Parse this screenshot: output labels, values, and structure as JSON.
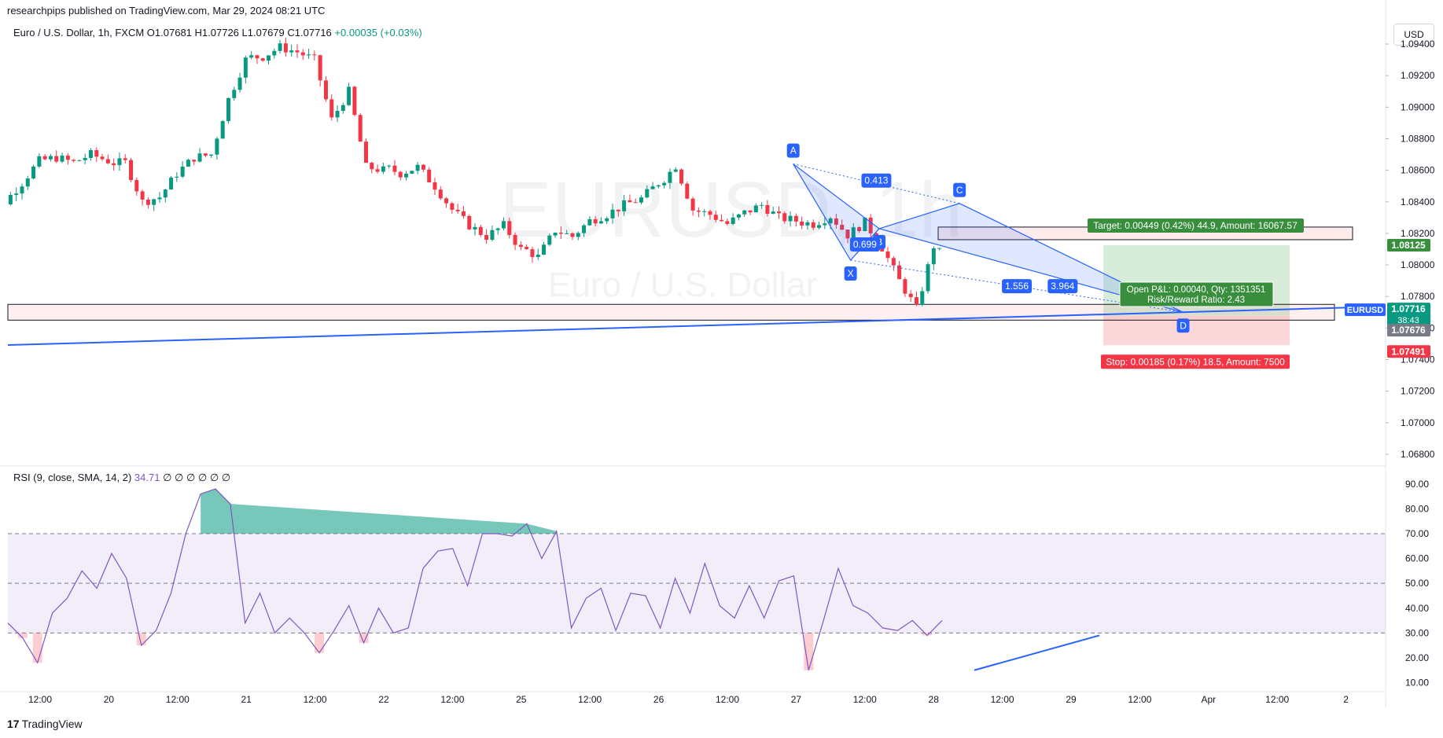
{
  "header": {
    "publisher": "researchpips published on TradingView.com, Mar 29, 2024 08:21 UTC"
  },
  "symbol_line": {
    "name": "Euro / U.S. Dollar, 1h, FXCM",
    "o": "O1.07681",
    "h": "H1.07726",
    "l": "L1.07679",
    "c": "C1.07716",
    "change": "+0.00035 (+0.03%)"
  },
  "watermark": {
    "ticker": "EURUSD, 1h",
    "name": "Euro / U.S. Dollar"
  },
  "currency_button": "USD",
  "rsi_label": {
    "name": "RSI (9, close, SMA, 14, 2)",
    "value": "34.71",
    "extras": "∅ ∅ ∅ ∅ ∅ ∅"
  },
  "brand": {
    "logo": "17",
    "name": "TradingView"
  },
  "colors": {
    "up": "#089981",
    "down": "#f23645",
    "pattern": "#2962ff",
    "rsi": "#7e57c2",
    "target": "#388e3c",
    "stop": "#f23645"
  },
  "price_tags": {
    "target": "1.08125",
    "symbol": "EURUSD",
    "last": "1.07716",
    "countdown": "38:43",
    "entry": "1.07676",
    "stop": "1.07491"
  },
  "position": {
    "target_label": "Target: 0.00449 (0.42%) 44.9, Amount: 16067.57",
    "pnl_label": "Open P&L: 0.00040, Qty: 1351351",
    "rr_label": "Risk/Reward Ratio: 2.43",
    "stop_label": "Stop: 0.00185 (0.17%) 18.5, Amount: 7500"
  },
  "pattern": {
    "points": [
      {
        "label": "X",
        "x": "2024-03-24 21:00",
        "y": 1.0803
      },
      {
        "label": "A",
        "x": "2024-03-26 11:00",
        "y": 1.0864
      },
      {
        "label": "B",
        "x": "2024-03-27 02:00",
        "y": 1.0823
      },
      {
        "label": "C",
        "x": "2024-03-27 16:00",
        "y": 1.0839
      },
      {
        "label": "D",
        "x": "2024-03-29 07:00",
        "y": 1.077
      }
    ],
    "ratios": [
      "0.413",
      "0.699",
      "1.556",
      "3.964"
    ]
  },
  "chart_data": {
    "type": "candlestick",
    "price_axis": {
      "ticks": [
        "1.09400",
        "1.09200",
        "1.09000",
        "1.08800",
        "1.08600",
        "1.08400",
        "1.08200",
        "1.08000",
        "1.07800",
        "1.07600",
        "1.07400",
        "1.07200",
        "1.07000",
        "1.06800"
      ],
      "ylim": [
        1.0674,
        1.0948
      ]
    },
    "rsi_axis": {
      "ticks": [
        "90.00",
        "80.00",
        "70.00",
        "60.00",
        "50.00",
        "40.00",
        "30.00",
        "20.00",
        "10.00"
      ],
      "ylim": [
        7,
        95
      ],
      "band": [
        30,
        70
      ],
      "mid": 50
    },
    "time_axis": [
      "12:00",
      "20",
      "12:00",
      "21",
      "12:00",
      "22",
      "12:00",
      "25",
      "12:00",
      "26",
      "12:00",
      "27",
      "12:00",
      "28",
      "12:00",
      "29",
      "12:00",
      "Apr",
      "12:00",
      "2"
    ],
    "close_anchors": [
      [
        1.0865,
        1.084,
        1.0852,
        1.0866,
        1.0868,
        1.0865,
        1.087,
        1.0866
      ],
      [
        1.0865,
        1.084,
        1.0843,
        1.0858,
        1.0868,
        1.087,
        1.0905,
        1.093
      ],
      [
        1.0932,
        1.0938,
        1.0935,
        1.093,
        1.0892,
        1.091,
        1.0862,
        1.086
      ],
      [
        1.0858,
        1.0862,
        1.085,
        1.0835,
        1.0825,
        1.0818,
        1.0825,
        1.081
      ],
      [
        1.0805,
        1.0822,
        1.0818,
        1.0828,
        1.0832,
        1.0838,
        1.0842,
        1.0852
      ],
      [
        1.0863,
        1.0835,
        1.0832,
        1.0826,
        1.0833,
        1.0838,
        1.083,
        1.0828
      ],
      [
        1.0826,
        1.0831,
        1.0819,
        1.0827,
        1.0811,
        1.079,
        1.0772,
        1.0812
      ],
      [
        1.0803,
        1.0795,
        1.0792,
        1.0785,
        1.0782,
        1.0779,
        1.0776,
        1.0772
      ]
    ],
    "rsi_anchors": [
      34,
      28,
      18,
      38,
      44,
      55,
      48,
      62,
      52,
      25,
      31,
      46,
      70,
      86,
      88,
      82,
      34,
      46,
      30,
      36,
      30,
      22,
      31,
      41,
      26,
      40,
      30,
      32,
      56,
      63,
      64,
      49,
      70,
      70,
      69,
      74,
      60,
      71,
      32,
      44,
      48,
      31,
      46,
      45,
      32,
      52,
      38,
      58,
      41,
      36,
      49,
      36,
      51,
      53,
      15,
      35,
      56,
      41,
      38,
      32,
      31,
      35,
      29,
      35
    ]
  }
}
